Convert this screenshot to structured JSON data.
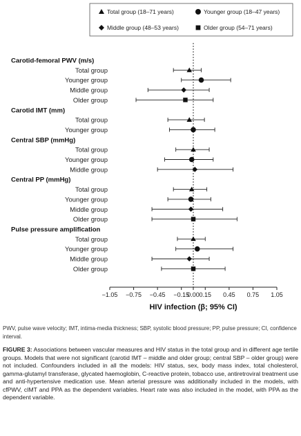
{
  "chart_data": {
    "type": "forest",
    "xlabel": "HIV infection (β; 95% CI)",
    "xlim": [
      -1.05,
      1.05
    ],
    "x_ticks": [
      "−1.05",
      "−0.75",
      "−0.45",
      "−0.15",
      "0.00",
      "0.15",
      "0.45",
      "0.75",
      "1.05"
    ],
    "x_tick_values": [
      -1.05,
      -0.75,
      -0.45,
      -0.15,
      0.0,
      0.15,
      0.45,
      0.75,
      1.05
    ],
    "reference_line": 0,
    "legend": [
      {
        "label": "Total group (18–71 years)",
        "marker": "triangle"
      },
      {
        "label": "Younger group (18–47 years)",
        "marker": "circle"
      },
      {
        "label": "Middle group (48–53 years)",
        "marker": "diamond"
      },
      {
        "label": "Older group (54–71 years)",
        "marker": "square"
      }
    ],
    "sections": [
      {
        "title": "Carotid-femoral PWV (m/s)",
        "rows": [
          {
            "label": "Total group",
            "marker": "triangle",
            "est": -0.05,
            "lo": -0.25,
            "hi": 0.1
          },
          {
            "label": "Younger group",
            "marker": "circle",
            "est": 0.1,
            "lo": -0.15,
            "hi": 0.47
          },
          {
            "label": "Middle group",
            "marker": "diamond",
            "est": -0.12,
            "lo": -0.57,
            "hi": 0.2
          },
          {
            "label": "Older group",
            "marker": "square",
            "est": -0.1,
            "lo": -0.72,
            "hi": 0.25
          }
        ]
      },
      {
        "title": "Carotid IMT (mm)",
        "rows": [
          {
            "label": "Total group",
            "marker": "triangle",
            "est": -0.05,
            "lo": -0.32,
            "hi": 0.14
          },
          {
            "label": "Younger group",
            "marker": "circle",
            "est": 0.0,
            "lo": -0.3,
            "hi": 0.27
          }
        ]
      },
      {
        "title": "Central SBP (mmHg)",
        "rows": [
          {
            "label": "Total group",
            "marker": "triangle",
            "est": 0.0,
            "lo": -0.22,
            "hi": 0.2
          },
          {
            "label": "Younger group",
            "marker": "circle",
            "est": -0.02,
            "lo": -0.36,
            "hi": 0.25
          },
          {
            "label": "Middle group",
            "marker": "diamond",
            "est": 0.02,
            "lo": -0.45,
            "hi": 0.5
          }
        ]
      },
      {
        "title": "Central PP (mmHg)",
        "rows": [
          {
            "label": "Total group",
            "marker": "triangle",
            "est": -0.02,
            "lo": -0.25,
            "hi": 0.17
          },
          {
            "label": "Younger group",
            "marker": "circle",
            "est": -0.03,
            "lo": -0.32,
            "hi": 0.22
          },
          {
            "label": "Middle group",
            "marker": "diamond",
            "est": -0.03,
            "lo": -0.52,
            "hi": 0.37
          },
          {
            "label": "Older group",
            "marker": "square",
            "est": 0.0,
            "lo": -0.52,
            "hi": 0.55
          }
        ]
      },
      {
        "title": "Pulse pressure amplification",
        "rows": [
          {
            "label": "Total group",
            "marker": "triangle",
            "est": 0.0,
            "lo": -0.2,
            "hi": 0.15
          },
          {
            "label": "Younger group",
            "marker": "circle",
            "est": 0.05,
            "lo": -0.22,
            "hi": 0.5
          },
          {
            "label": "Middle group",
            "marker": "diamond",
            "est": -0.05,
            "lo": -0.52,
            "hi": 0.2
          },
          {
            "label": "Older group",
            "marker": "square",
            "est": 0.0,
            "lo": -0.4,
            "hi": 0.4
          }
        ]
      }
    ]
  },
  "abbreviations": "PWV, pulse wave velocity; IMT, intima-media thickness; SBP, systolic blood pressure; PP, pulse pressure; CI, confidence interval.",
  "caption": {
    "label": "FIGURE 3:",
    "text": " Associations between vascular measures and HIV status in the total group and in different age tertile groups. Models that were not significant (carotid IMT – middle and older group; central SBP – older group) were not included. Confounders included in all the models: HIV status, sex, body mass index, total cholesterol, gamma-glutamyl transferase, glycated haemoglobin, C-reactive protein, tobacco use, antiretroviral treatment use and anti-hypertensive medication use. Mean arterial pressure was additionally included in the models, with cfPWV, cIMT and PPA as the dependent variables. Heart rate was also included in the model, with PPA as the dependent variable."
  }
}
